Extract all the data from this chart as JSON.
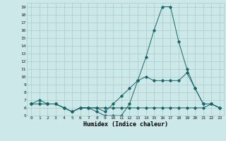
{
  "xlabel": "Humidex (Indice chaleur)",
  "background_color": "#cce8e8",
  "grid_color": "#aacccc",
  "line_color": "#1a6666",
  "x_values": [
    0,
    1,
    2,
    3,
    4,
    5,
    6,
    7,
    8,
    9,
    10,
    11,
    12,
    13,
    14,
    15,
    16,
    17,
    18,
    19,
    20,
    21,
    22,
    23
  ],
  "line1": [
    6.5,
    7.0,
    6.5,
    6.5,
    6.0,
    5.5,
    6.0,
    6.0,
    5.5,
    5.0,
    5.0,
    5.0,
    6.5,
    9.5,
    12.5,
    16.0,
    19.0,
    19.0,
    14.5,
    11.0,
    8.5,
    6.5,
    6.5,
    6.0
  ],
  "line2": [
    6.5,
    6.5,
    6.5,
    6.5,
    6.0,
    5.5,
    6.0,
    6.0,
    6.0,
    5.5,
    6.5,
    7.5,
    8.5,
    9.5,
    10.0,
    9.5,
    9.5,
    9.5,
    9.5,
    10.5,
    8.5,
    6.5,
    6.5,
    6.0
  ],
  "line3": [
    6.5,
    6.5,
    6.5,
    6.5,
    6.0,
    5.5,
    6.0,
    6.0,
    6.0,
    6.0,
    6.0,
    6.0,
    6.0,
    6.0,
    6.0,
    6.0,
    6.0,
    6.0,
    6.0,
    6.0,
    6.0,
    6.0,
    6.5,
    6.0
  ],
  "ylim": [
    5,
    19.5
  ],
  "yticks": [
    5,
    6,
    7,
    8,
    9,
    10,
    11,
    12,
    13,
    14,
    15,
    16,
    17,
    18,
    19
  ],
  "xticks": [
    0,
    1,
    2,
    3,
    4,
    5,
    6,
    7,
    8,
    9,
    10,
    11,
    12,
    13,
    14,
    15,
    16,
    17,
    18,
    19,
    20,
    21,
    22,
    23
  ]
}
